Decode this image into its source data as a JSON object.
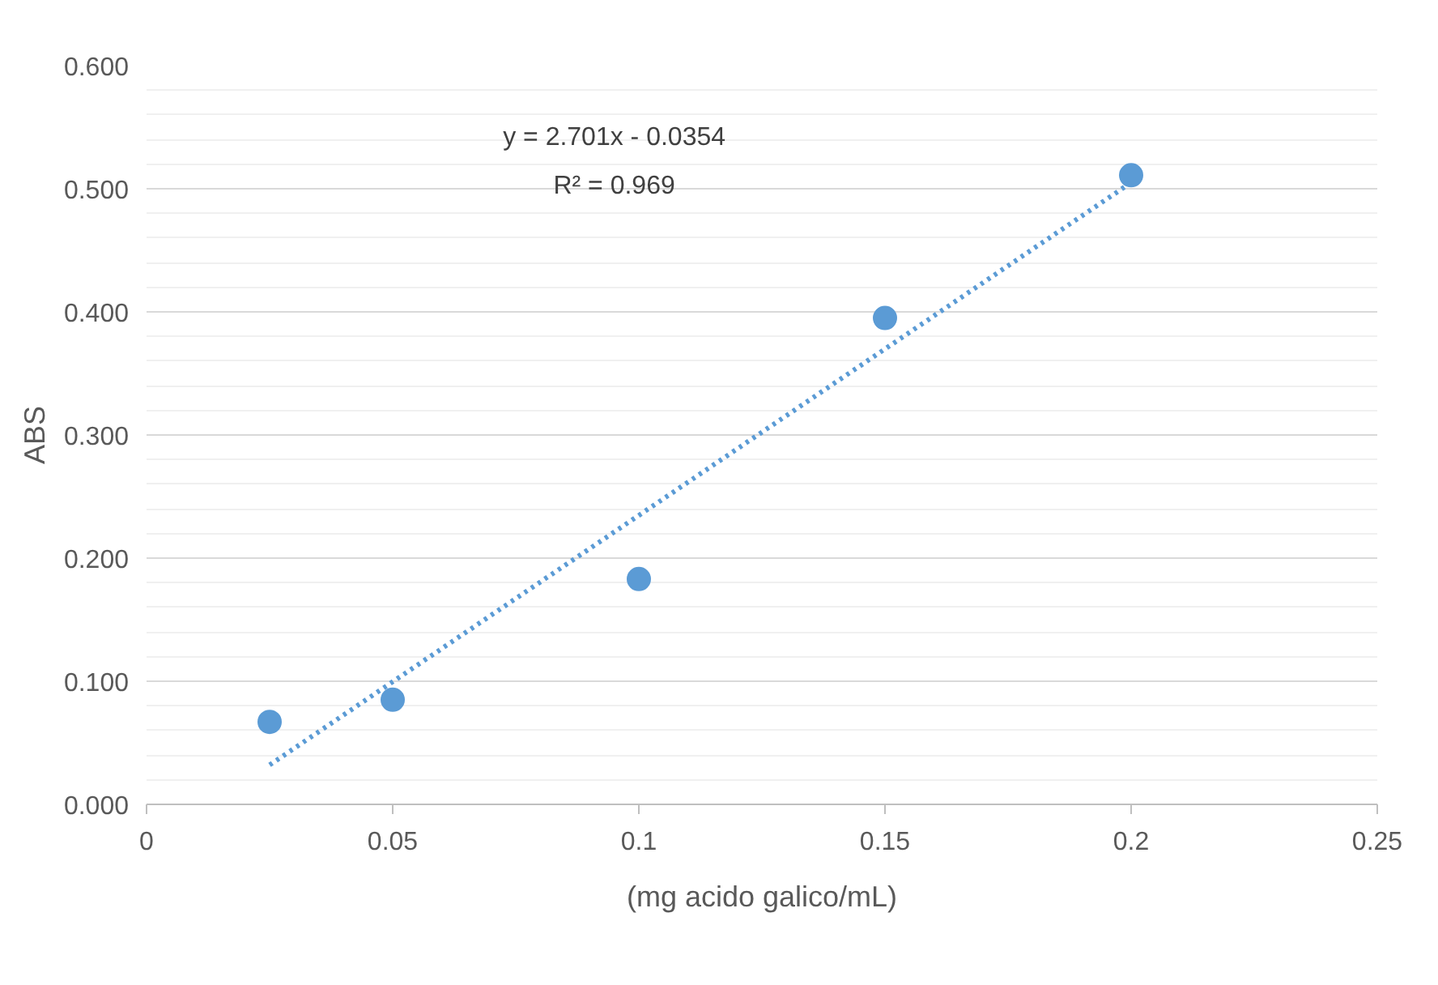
{
  "chart_data": {
    "type": "scatter",
    "xlabel": "(mg acido galico/mL)",
    "ylabel": "ABS",
    "annotations": [
      "y = 2.701x - 0.0354",
      "R² = 0.969"
    ],
    "series": [
      {
        "color": "#5b9bd5",
        "x": [
          0.025,
          0.05,
          0.1,
          0.15,
          0.2
        ],
        "values": [
          0.067,
          0.085,
          0.183,
          0.395,
          0.511
        ],
        "marker": "circle"
      },
      {
        "type": "line",
        "color": "#5b9bd5",
        "line_style": "dotted",
        "x": [
          0.025,
          0.2
        ],
        "values": [
          0.032,
          0.505
        ]
      }
    ],
    "xlim": [
      0,
      0.25
    ],
    "xticks": [
      0,
      0.05,
      0.1,
      0.15,
      0.2,
      0.25
    ],
    "ylim": [
      0,
      0.6
    ],
    "yticks": [
      {
        "value": 0,
        "label": "0.000"
      },
      {
        "value": 0.1,
        "label": "0.100"
      },
      {
        "value": 0.2,
        "label": "0.200"
      },
      {
        "value": 0.3,
        "label": "0.300"
      },
      {
        "value": 0.4,
        "label": "0.400"
      },
      {
        "value": 0.5,
        "label": "0.500"
      },
      {
        "value": 0.6,
        "label": "0.600"
      }
    ],
    "grid": "y"
  }
}
